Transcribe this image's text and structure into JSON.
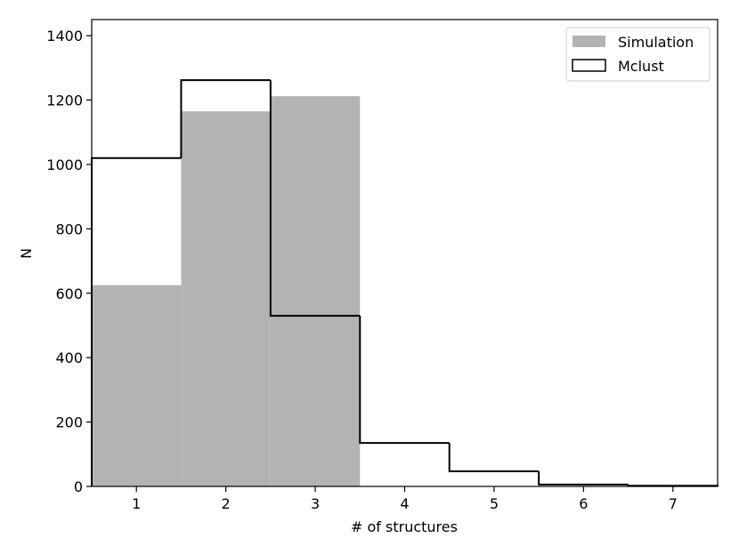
{
  "chart_data": {
    "type": "bar",
    "title": "",
    "xlabel": "# of structures",
    "ylabel": "N",
    "xlim": [
      0.5,
      7.5
    ],
    "ylim": [
      0,
      1450
    ],
    "x_ticks": [
      1,
      2,
      3,
      4,
      5,
      6,
      7
    ],
    "y_ticks": [
      0,
      200,
      400,
      600,
      800,
      1000,
      1200,
      1400
    ],
    "grid": false,
    "legend_position": "top-right",
    "series": [
      {
        "name": "Simulation",
        "style": "filled",
        "color": "#b3b3b3",
        "x": [
          1,
          2,
          3,
          4,
          5,
          6,
          7
        ],
        "values": [
          625,
          1165,
          1212,
          0,
          0,
          0,
          0
        ]
      },
      {
        "name": "Mclust",
        "style": "step",
        "color": "#000000",
        "x": [
          1,
          2,
          3,
          4,
          5,
          6,
          7
        ],
        "values": [
          1020,
          1262,
          530,
          135,
          47,
          6,
          2
        ]
      }
    ]
  }
}
